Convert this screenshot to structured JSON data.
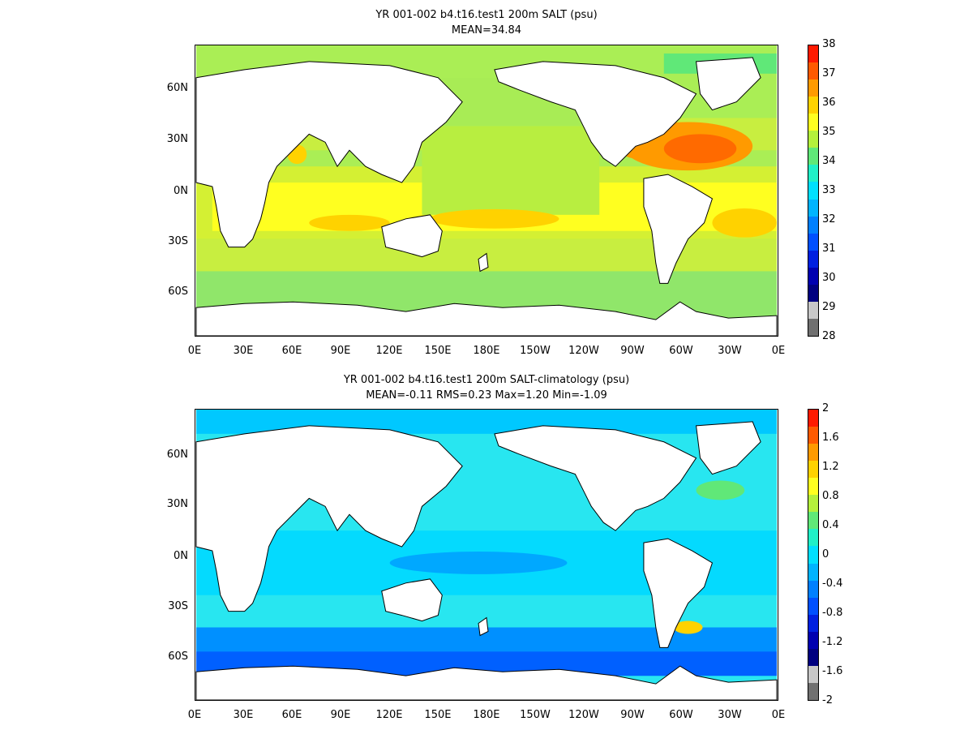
{
  "panels": [
    {
      "title_line1": "YR 001-002 b4.t16.test1 200m SALT (psu)",
      "title_line2": "MEAN=34.84",
      "lat_ticks": [
        "60N",
        "30N",
        "0N",
        "30S",
        "60S"
      ],
      "lon_ticks": [
        "0E",
        "30E",
        "60E",
        "90E",
        "120E",
        "150E",
        "180E",
        "150W",
        "120W",
        "90W",
        "60W",
        "30W",
        "0E"
      ],
      "colorbar_labels": [
        "38",
        "37",
        "36",
        "35",
        "34",
        "33",
        "32",
        "31",
        "30",
        "29",
        "28"
      ],
      "colorbar_colors": [
        "#ff1a00",
        "#ff5a00",
        "#ff9a00",
        "#ffd200",
        "#ffff20",
        "#b4f03c",
        "#60e878",
        "#20f0c8",
        "#00e0ff",
        "#00b4ff",
        "#0080ff",
        "#0050ff",
        "#0020e0",
        "#0000b0",
        "#000080",
        "#c8c8c8",
        "#707070"
      ],
      "ocean_color": "#aaee55"
    },
    {
      "title_line1": "YR 001-002 b4.t16.test1 200m SALT-climatology (psu)",
      "title_line2": "MEAN=-0.11   RMS=0.23   Max=1.20   Min=-1.09",
      "lat_ticks": [
        "60N",
        "30N",
        "0N",
        "30S",
        "60S"
      ],
      "lon_ticks": [
        "0E",
        "30E",
        "60E",
        "90E",
        "120E",
        "150E",
        "180E",
        "150W",
        "120W",
        "90W",
        "60W",
        "30W",
        "0E"
      ],
      "colorbar_labels": [
        "2",
        "1.6",
        "1.2",
        "0.8",
        "0.4",
        "0",
        "-0.4",
        "-0.8",
        "-1.2",
        "-1.6",
        "-2"
      ],
      "colorbar_colors": [
        "#ff1a00",
        "#ff5a00",
        "#ff9a00",
        "#ffd200",
        "#ffff20",
        "#b4f03c",
        "#60e878",
        "#20f0c8",
        "#00e0ff",
        "#00b4ff",
        "#0080ff",
        "#0050ff",
        "#0020e0",
        "#0000b0",
        "#000080",
        "#c8c8c8",
        "#707070"
      ],
      "ocean_color": "#28e6f0"
    }
  ]
}
